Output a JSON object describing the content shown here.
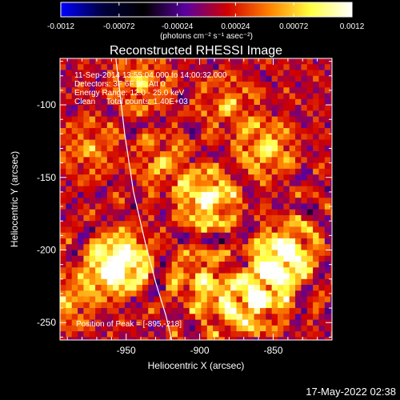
{
  "colorbar": {
    "tick_labels": [
      "-0.0012",
      "-0.00072",
      "-0.00024",
      "0.00024",
      "0.00072",
      "0.0012"
    ],
    "tick_values": [
      -0.0012,
      -0.00072,
      -0.00024,
      0.00024,
      0.00072,
      0.0012
    ],
    "range": [
      -0.0012,
      0.0012
    ],
    "units_label": "(photons cm⁻² s⁻¹ asec⁻²)",
    "colors": [
      "#0000ff",
      "#000040",
      "#000000",
      "#5a00a0",
      "#d00000",
      "#ff8000",
      "#ffff40",
      "#ffffff"
    ]
  },
  "chart_data": {
    "type": "heatmap",
    "title": "Reconstructed RHESSI Image",
    "xlabel": "Heliocentric X (arcsec)",
    "ylabel": "Heliocentric Y (arcsec)",
    "xlim": [
      -995,
      -810
    ],
    "ylim": [
      -262,
      -68
    ],
    "x_tick_labels": [
      "-950",
      "-900",
      "-850"
    ],
    "x_tick_values": [
      -950,
      -900,
      -850
    ],
    "y_tick_labels": [
      "-100",
      "-150",
      "-200",
      "-250"
    ],
    "y_tick_values": [
      -100,
      -150,
      -200,
      -250
    ],
    "info_lines": [
      "11-Sep-2014 13:55:04.000 to 14:00:32.000",
      "Detectors: 3F 6F 9F, Att 0",
      "Energy Range: 12.0 - 25.0 keV",
      "Clean     Total counts: 1.40E+03"
    ],
    "peak_label": "Position of Peak = [-895,-218]",
    "peak_position": [
      -895,
      -218
    ],
    "limb_curve": [
      [
        -957,
        -68
      ],
      [
        -951,
        -120
      ],
      [
        -945,
        -160
      ],
      [
        -937,
        -195
      ],
      [
        -930,
        -222
      ],
      [
        -923,
        -245
      ],
      [
        -919,
        -262
      ]
    ],
    "sources": [
      {
        "x": -895,
        "y": -165,
        "amp": 0.00115
      },
      {
        "x": -952,
        "y": -205,
        "amp": 0.00095
      },
      {
        "x": -960,
        "y": -215,
        "amp": 0.0009
      },
      {
        "x": -855,
        "y": -130,
        "amp": 0.0008
      },
      {
        "x": -840,
        "y": -200,
        "amp": 0.00105
      },
      {
        "x": -850,
        "y": -215,
        "amp": 0.0009
      },
      {
        "x": -860,
        "y": -235,
        "amp": 0.0008
      },
      {
        "x": -900,
        "y": -220,
        "amp": 0.0007
      },
      {
        "x": -880,
        "y": -240,
        "amp": 0.0006
      },
      {
        "x": -940,
        "y": -85,
        "amp": 0.0006
      },
      {
        "x": -975,
        "y": -130,
        "amp": 0.0005
      },
      {
        "x": -880,
        "y": -100,
        "amp": 0.0005
      },
      {
        "x": -925,
        "y": -140,
        "amp": 0.00055
      },
      {
        "x": -990,
        "y": -235,
        "amp": 0.0006
      }
    ]
  },
  "timestamp": "17-May-2022 02:38"
}
